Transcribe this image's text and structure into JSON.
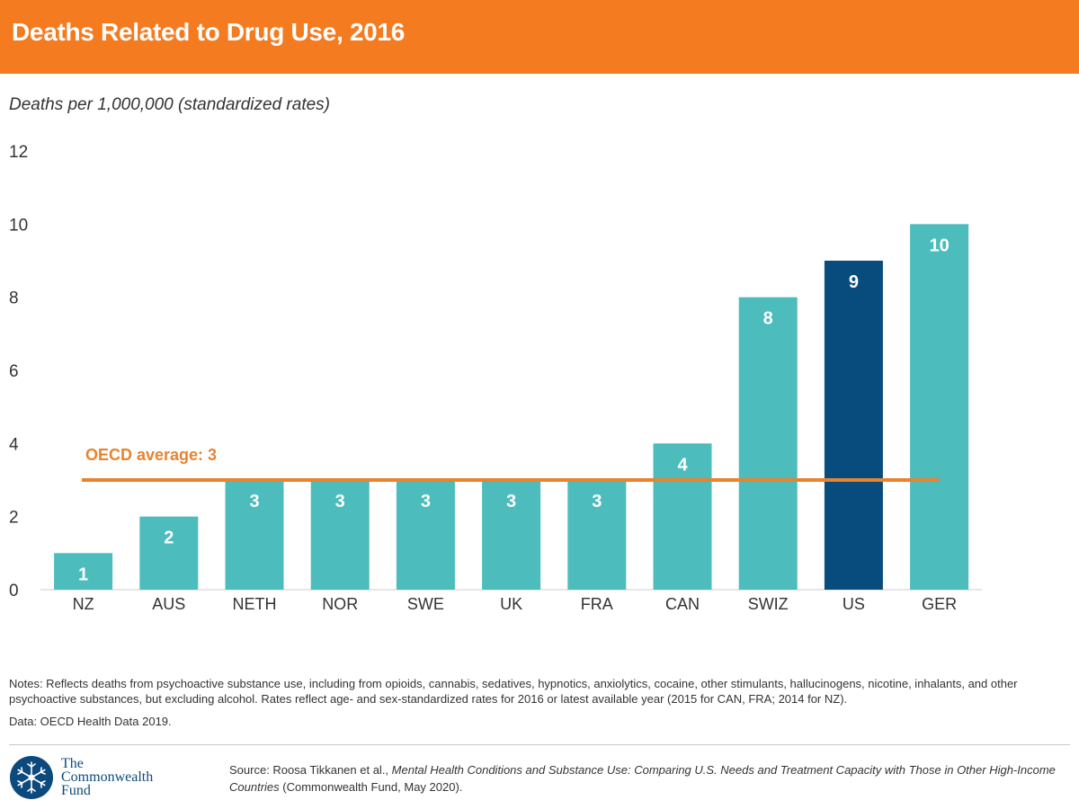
{
  "header": {
    "title": "Deaths Related to Drug Use, 2016"
  },
  "colors": {
    "header_bg": "#f47b20",
    "bar": "#4cbcbc",
    "bar_highlight": "#084c7e",
    "average_line": "#e8832e"
  },
  "chart_data": {
    "type": "bar",
    "title": "Deaths Related to Drug Use, 2016",
    "ylabel": "Deaths per 1,000,000 (standardized rates)",
    "xlabel": "",
    "categories": [
      "NZ",
      "AUS",
      "NETH",
      "NOR",
      "SWE",
      "UK",
      "FRA",
      "CAN",
      "SWIZ",
      "US",
      "GER"
    ],
    "values": [
      1,
      2,
      3,
      3,
      3,
      3,
      3,
      4,
      8,
      9,
      10
    ],
    "highlight": "US",
    "ylim": [
      0,
      12
    ],
    "yticks": [
      0,
      2,
      4,
      6,
      8,
      10,
      12
    ],
    "grid": false,
    "data_labels": true,
    "reference_line": {
      "label": "OECD average: 3",
      "value": 3
    }
  },
  "footer": {
    "notes": "Notes: Reflects deaths from psychoactive substance use, including from opioids, cannabis, sedatives, hypnotics, anxiolytics, cocaine, other stimulants, hallucinogens, nicotine, inhalants, and other psychoactive substances, but excluding alcohol. Rates reflect age- and sex-standardized rates for 2016 or latest available year (2015 for CAN, FRA; 2014 for NZ).",
    "data_source": "Data: OECD Health Data 2019.",
    "source_prefix": "Source: Roosa Tikkanen et al., ",
    "source_title": "Mental Health Conditions and Substance Use: Comparing U.S. Needs and Treatment Capacity with Those in Other High-Income Countries",
    "source_suffix": " (Commonwealth Fund, May 2020).",
    "logo_line1": "The",
    "logo_line2": "Commonwealth",
    "logo_line3": "Fund",
    "logo_icon": "snowflake-seal-icon"
  }
}
